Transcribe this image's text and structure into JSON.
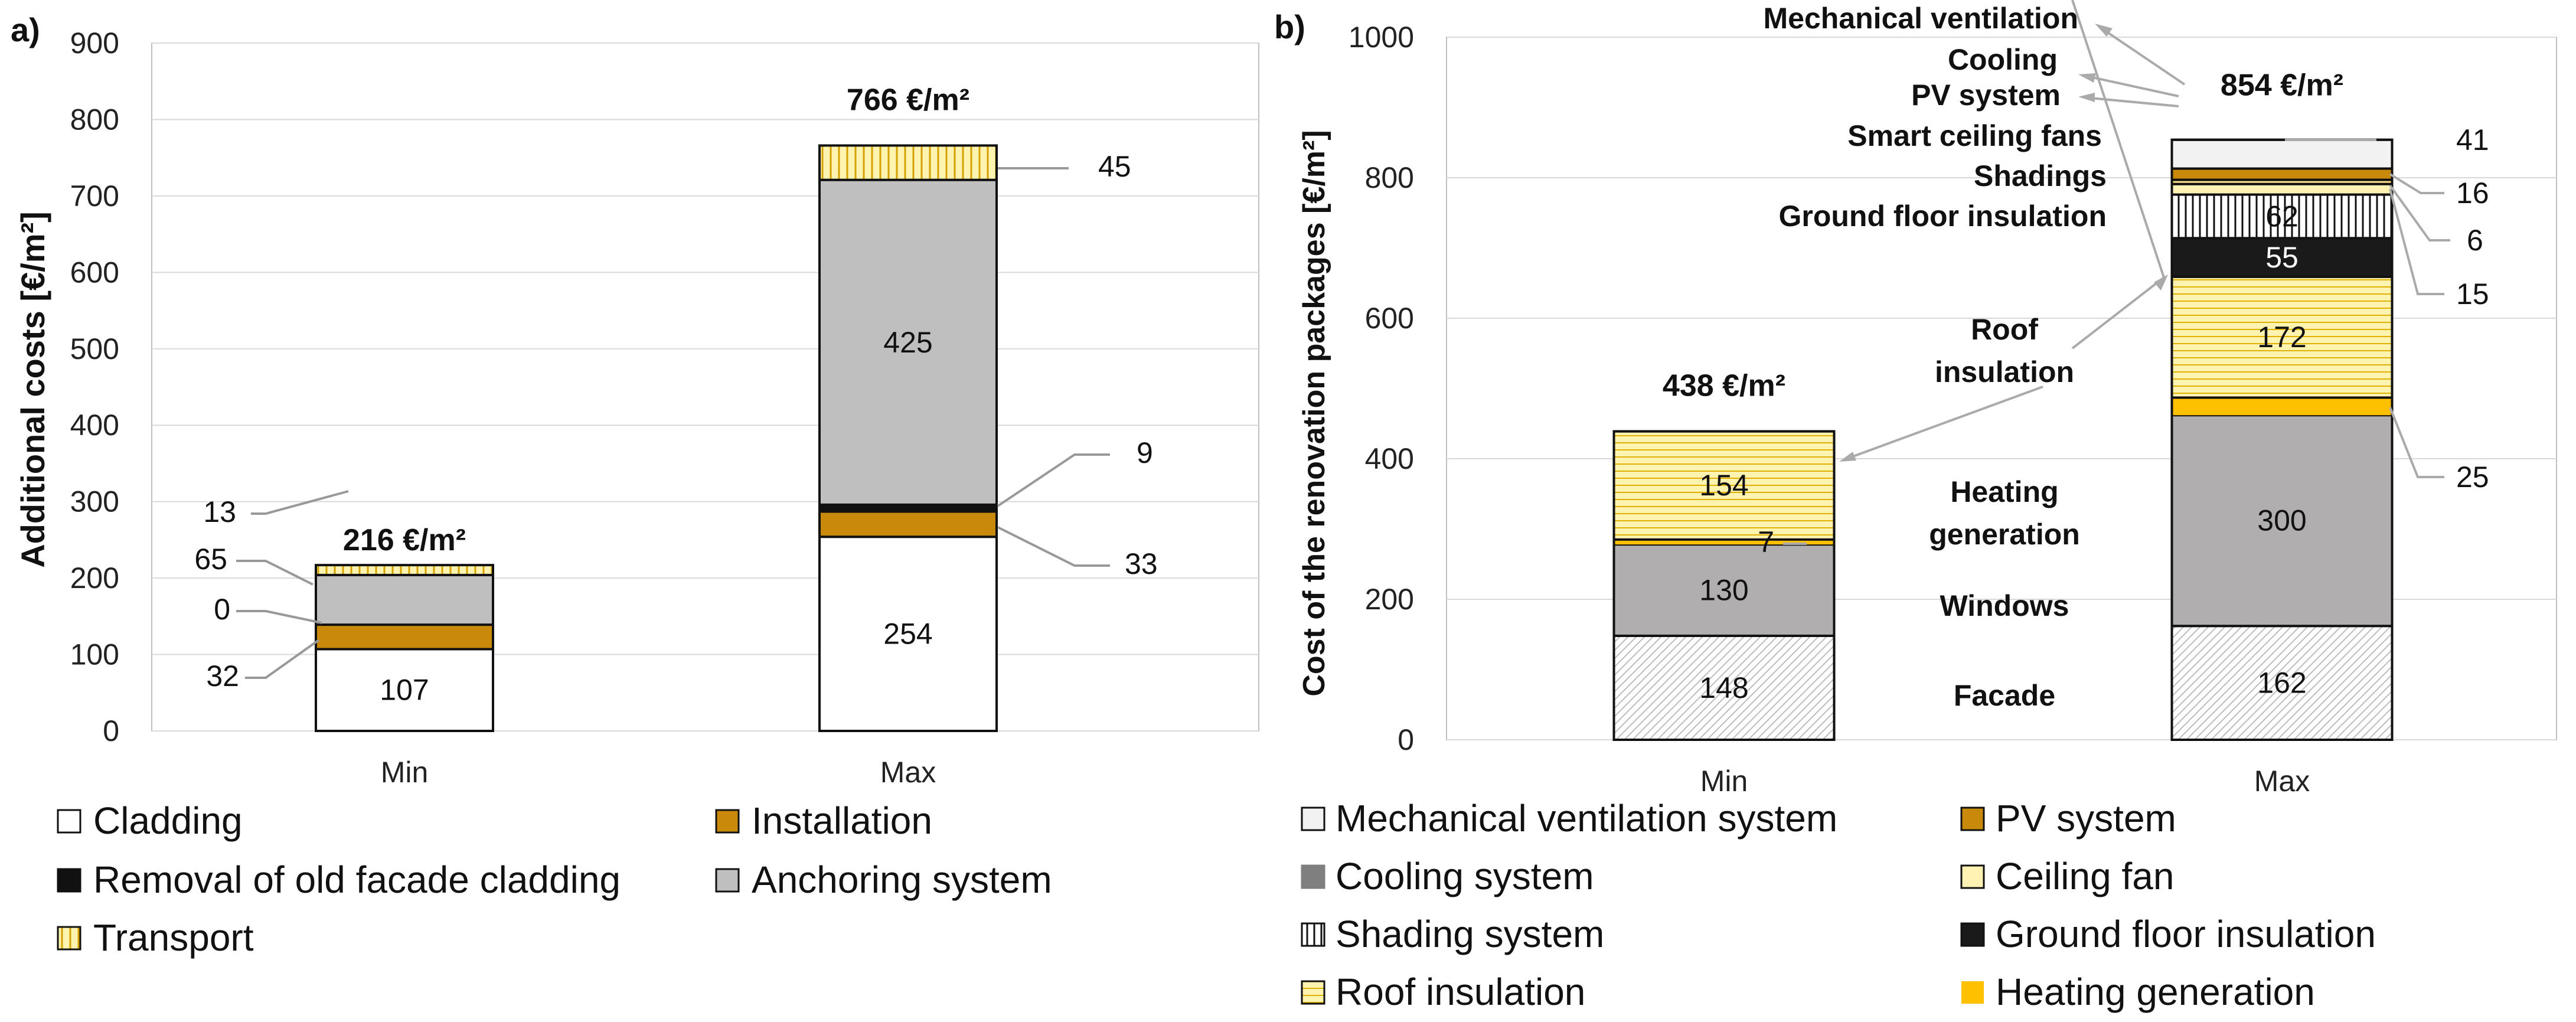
{
  "chart_data": [
    {
      "panel": "a)",
      "type": "stacked-bar",
      "title": "",
      "ylabel": "Additional costs [€/m²]",
      "ylim": [
        0,
        900
      ],
      "yticks": [
        "0",
        "100",
        "200",
        "300",
        "400",
        "500",
        "600",
        "700",
        "800",
        "900"
      ],
      "categories": [
        "Min",
        "Max"
      ],
      "series": [
        {
          "name": "Cladding",
          "values": [
            107,
            254
          ],
          "labels": [
            "107",
            "254"
          ]
        },
        {
          "name": "Installation",
          "values": [
            32,
            33
          ],
          "labels": [
            "32",
            "33"
          ]
        },
        {
          "name": "Removal of old facade cladding",
          "values": [
            0,
            9
          ],
          "labels": [
            "0",
            "9"
          ]
        },
        {
          "name": "Anchoring system",
          "values": [
            65,
            425
          ],
          "labels": [
            "65",
            "425"
          ]
        },
        {
          "name": "Transport",
          "values": [
            13,
            45
          ],
          "labels": [
            "13",
            "45"
          ]
        }
      ],
      "totals": [
        "216 €/m²",
        "766 €/m²"
      ],
      "legend": [
        "Cladding",
        "Installation",
        "Removal of old facade cladding",
        "Anchoring system",
        "Transport"
      ],
      "colors": {
        "Cladding": "#ffffff",
        "Installation": "#c98a0c",
        "Removal of old facade cladding": "#111111",
        "Anchoring system": "#bfbfbf",
        "Transport": "#fff2b3"
      }
    },
    {
      "panel": "b)",
      "type": "stacked-bar",
      "title": "",
      "ylabel": "Cost of the renovation packages [€/m²]",
      "ylim": [
        0,
        1000
      ],
      "yticks": [
        "0",
        "200",
        "400",
        "600",
        "800",
        "1000"
      ],
      "categories": [
        "Min",
        "Max"
      ],
      "series": [
        {
          "name": "Facade",
          "values": [
            148,
            162
          ],
          "labels": [
            "148",
            "162"
          ]
        },
        {
          "name": "Windows",
          "values": [
            130,
            300
          ],
          "labels": [
            "130",
            "300"
          ]
        },
        {
          "name": "Heating generation",
          "values": [
            7,
            25
          ],
          "labels": [
            "7",
            "25"
          ]
        },
        {
          "name": "Roof insulation",
          "values": [
            154,
            172
          ],
          "labels": [
            "154",
            "172"
          ]
        },
        {
          "name": "Ground floor insulation",
          "values": [
            0,
            55
          ],
          "labels": [
            "",
            "55"
          ]
        },
        {
          "name": "Shading system",
          "values": [
            0,
            62
          ],
          "labels": [
            "",
            "62"
          ]
        },
        {
          "name": "Ceiling fan",
          "values": [
            0,
            15
          ],
          "labels": [
            "",
            "15"
          ]
        },
        {
          "name": "Shadings",
          "values": [
            0,
            6
          ],
          "labels": [
            "",
            "6"
          ]
        },
        {
          "name": "PV system",
          "values": [
            0,
            16
          ],
          "labels": [
            "",
            "16"
          ]
        },
        {
          "name": "Mechanical ventilation system",
          "values": [
            0,
            41
          ],
          "labels": [
            "",
            "41"
          ]
        }
      ],
      "totals": [
        "438 €/m²",
        "854 €/m²"
      ],
      "annotations": [
        "Mechanical ventilation",
        "Cooling",
        "PV system",
        "Smart ceiling fans",
        "Shadings",
        "Ground floor insulation",
        "Roof insulation",
        "Heating generation",
        "Windows",
        "Facade"
      ],
      "legend": [
        "Mechanical ventilation system",
        "PV system",
        "Cooling system",
        "Ceiling fan",
        "Shading system",
        "Ground floor insulation",
        "Roof insulation",
        "Heating generation"
      ],
      "colors": {
        "Mechanical ventilation system": "#f2f2f2",
        "PV system": "#c98a0c",
        "Cooling system": "#7f7f7f",
        "Ceiling fan": "#fff2b3",
        "Shading system": "#ffffff",
        "Ground floor insulation": "#1a1a1a",
        "Roof insulation": "#fff2b3",
        "Heating generation": "#ffc000",
        "Facade": "#ffffff",
        "Windows": "#b0aeae",
        "Shadings": "#ffe08a"
      }
    }
  ]
}
